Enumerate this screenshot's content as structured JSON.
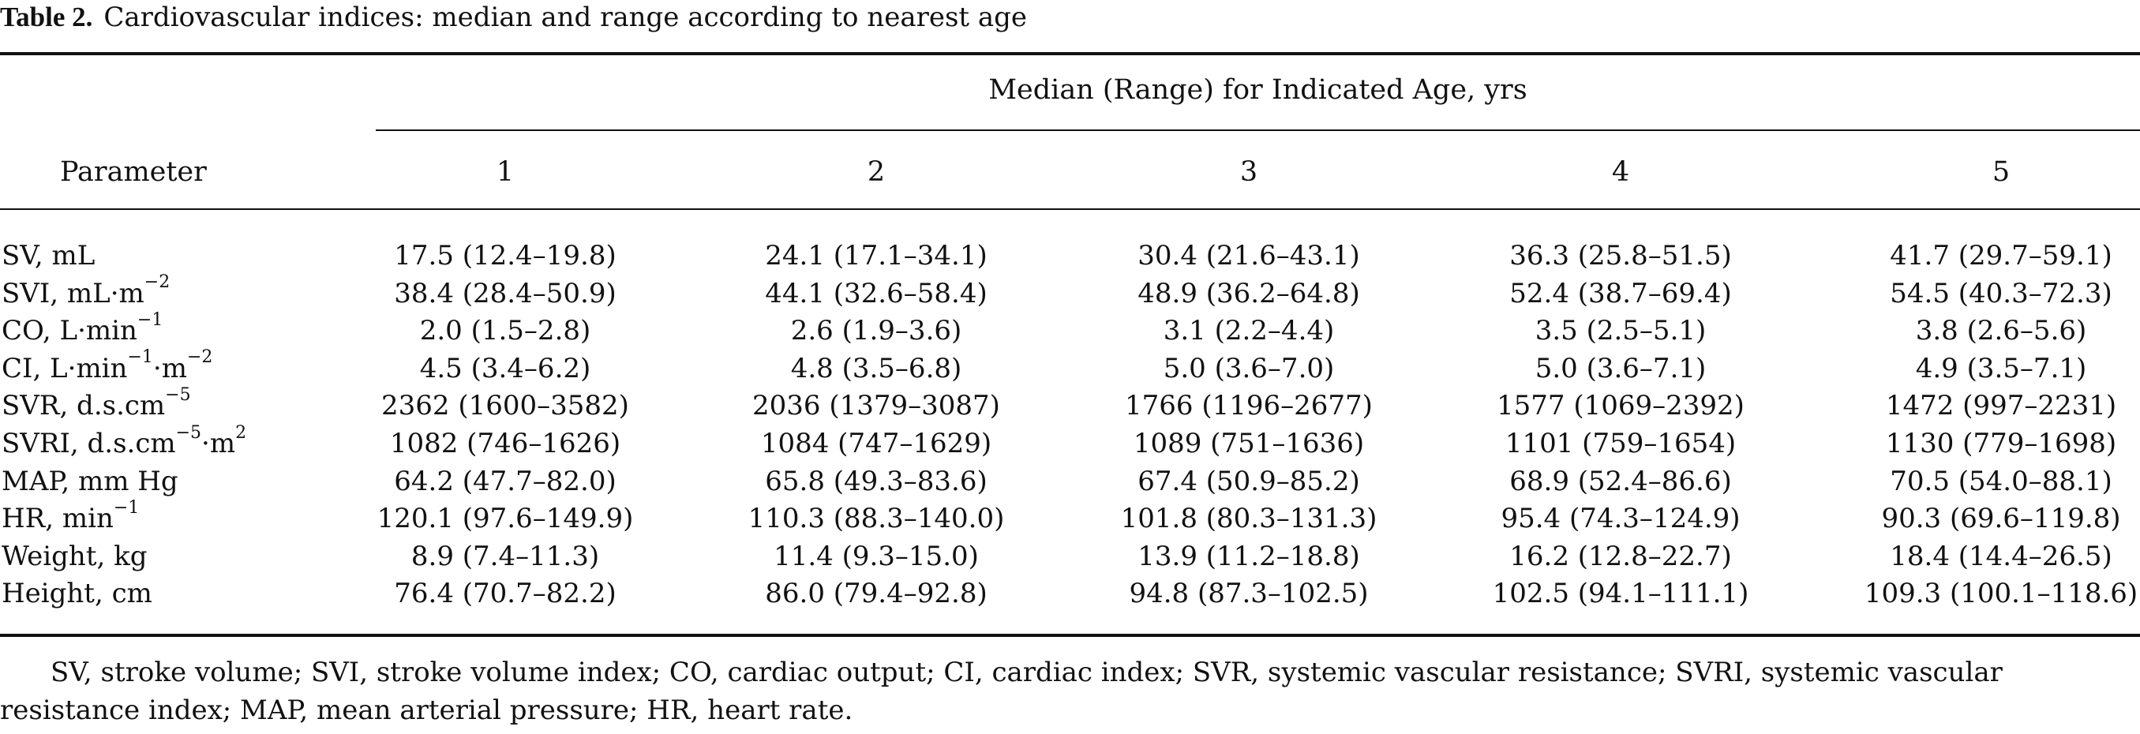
{
  "caption": {
    "label": "Table 2.",
    "text": "Cardiovascular indices: median and range according to nearest age"
  },
  "table": {
    "spanner": "Median (Range) for Indicated Age, yrs",
    "param_header": "Parameter",
    "ages": [
      "1",
      "2",
      "3",
      "4",
      "5"
    ],
    "rows": [
      {
        "name": "SV, mL",
        "unit_sup": "",
        "values": [
          "17.5 (12.4–19.8)",
          "24.1 (17.1–34.1)",
          "30.4 (21.6–43.1)",
          "36.3 (25.8–51.5)",
          "41.7 (29.7–59.1)"
        ]
      },
      {
        "name": "SVI, mL·m",
        "unit_sup": "−2",
        "values": [
          "38.4 (28.4–50.9)",
          "44.1 (32.6–58.4)",
          "48.9 (36.2–64.8)",
          "52.4 (38.7–69.4)",
          "54.5 (40.3–72.3)"
        ]
      },
      {
        "name": "CO, L·min",
        "unit_sup": "−1",
        "values": [
          "2.0 (1.5–2.8)",
          "2.6 (1.9–3.6)",
          "3.1 (2.2–4.4)",
          "3.5 (2.5–5.1)",
          "3.8 (2.6–5.6)"
        ]
      },
      {
        "name": "CI, L·min",
        "unit_sup": "−1",
        "name_tail": "·m",
        "unit_sup2": "−2",
        "values": [
          "4.5 (3.4–6.2)",
          "4.8 (3.5–6.8)",
          "5.0 (3.6–7.0)",
          "5.0 (3.6–7.1)",
          "4.9 (3.5–7.1)"
        ]
      },
      {
        "name": "SVR, d.s.cm",
        "unit_sup": "−5",
        "values": [
          "2362 (1600–3582)",
          "2036 (1379–3087)",
          "1766 (1196–2677)",
          "1577 (1069–2392)",
          "1472 (997–2231)"
        ]
      },
      {
        "name": "SVRI, d.s.cm",
        "unit_sup": "−5",
        "name_tail": "·m",
        "unit_sup2": "2",
        "values": [
          "1082 (746–1626)",
          "1084 (747–1629)",
          "1089 (751–1636)",
          "1101 (759–1654)",
          "1130 (779–1698)"
        ]
      },
      {
        "name": "MAP, mm Hg",
        "unit_sup": "",
        "values": [
          "64.2 (47.7–82.0)",
          "65.8 (49.3–83.6)",
          "67.4 (50.9–85.2)",
          "68.9 (52.4–86.6)",
          "70.5 (54.0–88.1)"
        ]
      },
      {
        "name": "HR, min",
        "unit_sup": "−1",
        "values": [
          "120.1 (97.6–149.9)",
          "110.3 (88.3–140.0)",
          "101.8 (80.3–131.3)",
          "95.4 (74.3–124.9)",
          "90.3 (69.6–119.8)"
        ]
      },
      {
        "name": "Weight, kg",
        "unit_sup": "",
        "values": [
          "8.9 (7.4–11.3)",
          "11.4 (9.3–15.0)",
          "13.9 (11.2–18.8)",
          "16.2 (12.8–22.7)",
          "18.4 (14.4–26.5)"
        ]
      },
      {
        "name": "Height, cm",
        "unit_sup": "",
        "values": [
          "76.4 (70.7–82.2)",
          "86.0 (79.4–92.8)",
          "94.8 (87.3–102.5)",
          "102.5 (94.1–111.1)",
          "109.3 (100.1–118.6)"
        ]
      }
    ]
  },
  "footnote": "SV, stroke volume; SVI, stroke volume index; CO, cardiac output; CI, cardiac index; SVR, systemic vascular resistance; SVRI, systemic vascular resistance index; MAP, mean arterial pressure; HR, heart rate."
}
